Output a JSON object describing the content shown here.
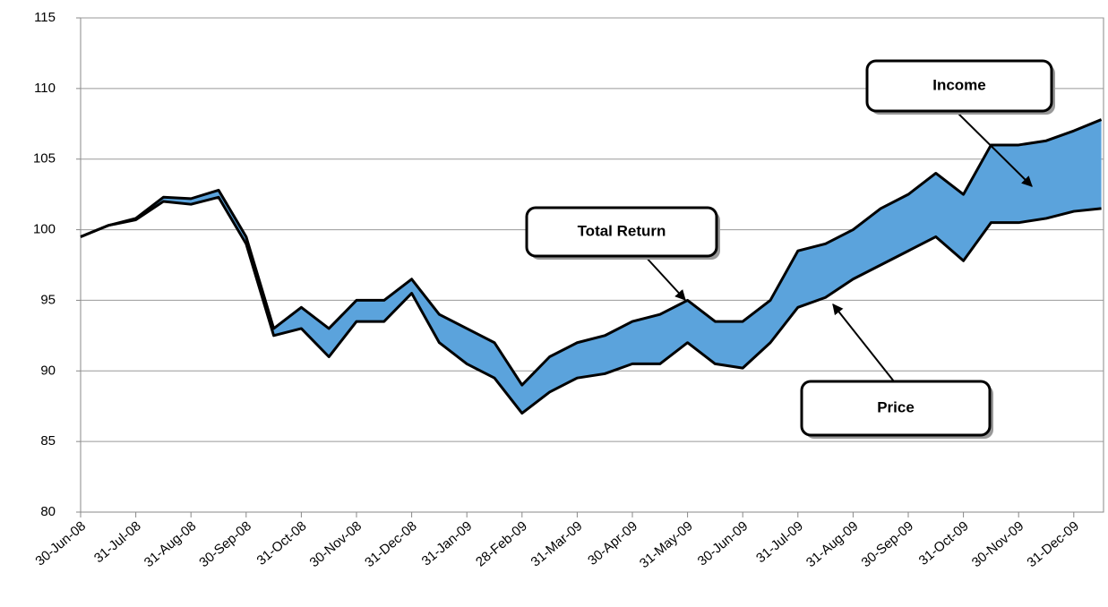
{
  "chart_data": {
    "type": "line",
    "categories": [
      "30-Jun-08",
      null,
      "31-Jul-08",
      null,
      "31-Aug-08",
      null,
      "30-Sep-08",
      null,
      "31-Oct-08",
      null,
      "30-Nov-08",
      null,
      "31-Dec-08",
      null,
      "31-Jan-09",
      null,
      "28-Feb-09",
      null,
      "31-Mar-09",
      null,
      "30-Apr-09",
      null,
      "31-May-09",
      null,
      "30-Jun-09",
      null,
      "31-Jul-09",
      null,
      "31-Aug-09",
      null,
      "30-Sep-09",
      null,
      "31-Oct-09",
      null,
      "30-Nov-09",
      null,
      "31-Dec-09",
      null
    ],
    "series": [
      {
        "name": "Total Return",
        "color": "#000000",
        "values": [
          99.5,
          100.3,
          100.8,
          102.3,
          102.2,
          102.8,
          99.5,
          93,
          94.5,
          93,
          95,
          95,
          96.5,
          94,
          93,
          92,
          89,
          91,
          92,
          92.5,
          93.5,
          94,
          95,
          93.5,
          93.5,
          95,
          98.5,
          99,
          100,
          101.5,
          102.5,
          104,
          102.5,
          106,
          106,
          106.3,
          107,
          107.8
        ]
      },
      {
        "name": "Price",
        "color": "#000000",
        "values": [
          99.5,
          100.3,
          100.7,
          102,
          101.8,
          102.3,
          99,
          92.5,
          93,
          91,
          93.5,
          93.5,
          95.5,
          92,
          90.5,
          89.5,
          87,
          88.5,
          89.5,
          89.8,
          90.5,
          90.5,
          92,
          90.5,
          90.2,
          92,
          94.5,
          95.2,
          96.5,
          97.5,
          98.5,
          99.5,
          97.8,
          100.5,
          100.5,
          100.8,
          101.3,
          101.5
        ]
      }
    ],
    "band_color": "#5ba3dc",
    "annotations": [
      "Income"
    ],
    "ylim": [
      80,
      115
    ],
    "yticks": [
      80,
      85,
      90,
      95,
      100,
      105,
      110,
      115
    ],
    "grid": true
  }
}
